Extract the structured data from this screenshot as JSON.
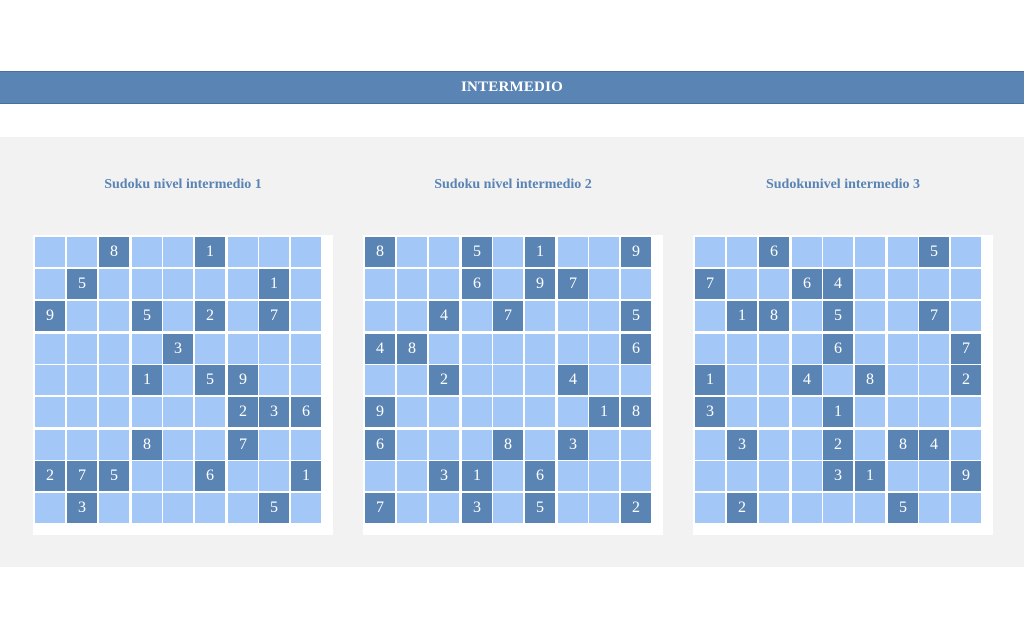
{
  "banner": {
    "title": "INTERMEDIO"
  },
  "colors": {
    "accent": "#5a84b4",
    "empty_cell": "#a3c7f7",
    "panel": "#f2f2f2"
  },
  "puzzles": [
    {
      "title": "Sudoku nivel intermedio 1",
      "grid": [
        [
          "",
          "",
          "8",
          "",
          "",
          "1",
          "",
          "",
          ""
        ],
        [
          "",
          "5",
          "",
          "",
          "",
          "",
          "",
          "1",
          ""
        ],
        [
          "9",
          "",
          "",
          "5",
          "",
          "2",
          "",
          "7",
          ""
        ],
        [
          "",
          "",
          "",
          "",
          "3",
          "",
          "",
          "",
          ""
        ],
        [
          "",
          "",
          "",
          "1",
          "",
          "5",
          "9",
          "",
          ""
        ],
        [
          "",
          "",
          "",
          "",
          "",
          "",
          "2",
          "3",
          "6"
        ],
        [
          "",
          "",
          "",
          "8",
          "",
          "",
          "7",
          "",
          ""
        ],
        [
          "2",
          "7",
          "5",
          "",
          "",
          "6",
          "",
          "",
          "1"
        ],
        [
          "",
          "3",
          "",
          "",
          "",
          "",
          "",
          "5",
          ""
        ]
      ]
    },
    {
      "title": "Sudoku nivel intermedio 2",
      "grid": [
        [
          "8",
          "",
          "",
          "5",
          "",
          "1",
          "",
          "",
          "9"
        ],
        [
          "",
          "",
          "",
          "6",
          "",
          "9",
          "7",
          "",
          ""
        ],
        [
          "",
          "",
          "4",
          "",
          "7",
          "",
          "",
          "",
          "5"
        ],
        [
          "4",
          "8",
          "",
          "",
          "",
          "",
          "",
          "",
          "6"
        ],
        [
          "",
          "",
          "2",
          "",
          "",
          "",
          "4",
          "",
          ""
        ],
        [
          "9",
          "",
          "",
          "",
          "",
          "",
          "",
          "1",
          "8"
        ],
        [
          "6",
          "",
          "",
          "",
          "8",
          "",
          "3",
          "",
          ""
        ],
        [
          "",
          "",
          "3",
          "1",
          "",
          "6",
          "",
          "",
          ""
        ],
        [
          "7",
          "",
          "",
          "3",
          "",
          "5",
          "",
          "",
          "2"
        ]
      ]
    },
    {
      "title": "Sudokunivel intermedio 3",
      "grid": [
        [
          "",
          "",
          "6",
          "",
          "",
          "",
          "",
          "5",
          ""
        ],
        [
          "7",
          "",
          "",
          "6",
          "4",
          "",
          "",
          "",
          ""
        ],
        [
          "",
          "1",
          "8",
          "",
          "5",
          "",
          "",
          "7",
          ""
        ],
        [
          "",
          "",
          "",
          "",
          "6",
          "",
          "",
          "",
          "7"
        ],
        [
          "1",
          "",
          "",
          "4",
          "",
          "8",
          "",
          "",
          "2"
        ],
        [
          "3",
          "",
          "",
          "",
          "1",
          "",
          "",
          "",
          ""
        ],
        [
          "",
          "3",
          "",
          "",
          "2",
          "",
          "8",
          "4",
          ""
        ],
        [
          "",
          "",
          "",
          "",
          "3",
          "1",
          "",
          "",
          "9"
        ],
        [
          "",
          "2",
          "",
          "",
          "",
          "",
          "5",
          "",
          ""
        ]
      ]
    }
  ]
}
